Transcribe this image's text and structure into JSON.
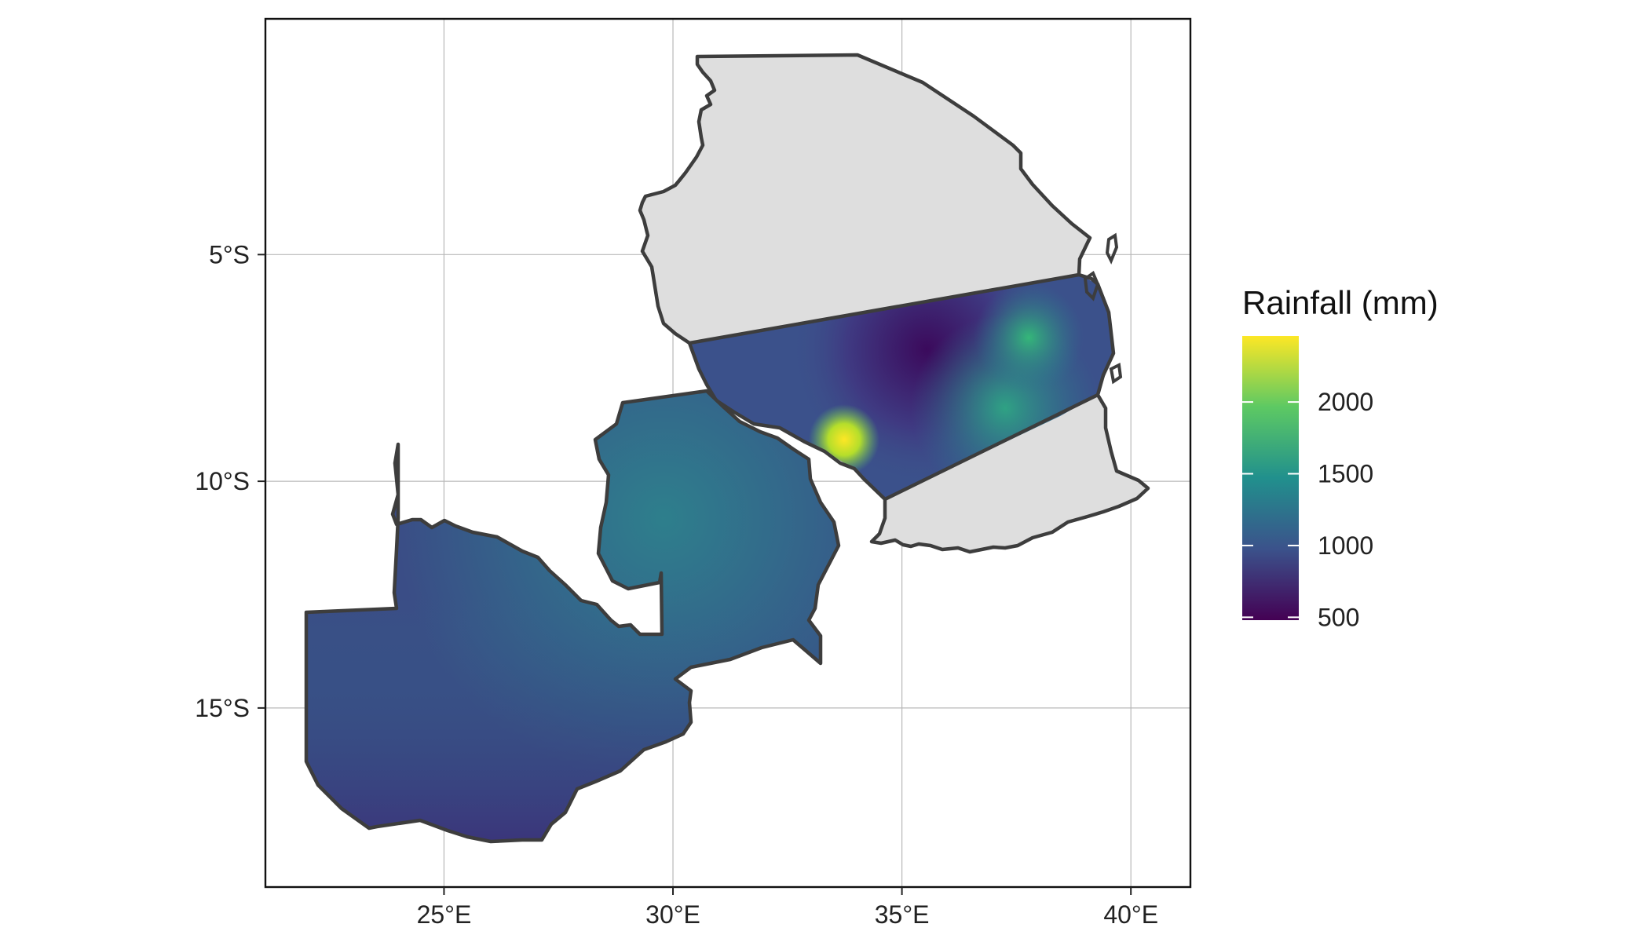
{
  "map": {
    "x_ticks": [
      {
        "lon": 25,
        "label": "25°E"
      },
      {
        "lon": 30,
        "label": "30°E"
      },
      {
        "lon": 35,
        "label": "35°E"
      },
      {
        "lon": 40,
        "label": "40°E"
      }
    ],
    "y_ticks": [
      {
        "lat": -5,
        "label": "5°S"
      },
      {
        "lat": -10,
        "label": "10°S"
      },
      {
        "lat": -15,
        "label": "15°S"
      }
    ],
    "lon_range": [
      21.1,
      41.3
    ],
    "lat_range": [
      -18.95,
      0.2
    ],
    "grid": true,
    "panel_background": "#ffffff",
    "masked_fill": "#dedede",
    "border_color": "#3d3d3d"
  },
  "legend": {
    "title": "Rainfall (mm)",
    "ticks": [
      {
        "value": 2000,
        "label": "2000"
      },
      {
        "value": 1500,
        "label": "1500"
      },
      {
        "value": 1000,
        "label": "1000"
      },
      {
        "value": 500,
        "label": "500"
      }
    ],
    "range": [
      480,
      2460
    ],
    "palette": [
      "#440154",
      "#3b528b",
      "#21908d",
      "#5dc963",
      "#fde725"
    ],
    "placement": "right"
  }
}
